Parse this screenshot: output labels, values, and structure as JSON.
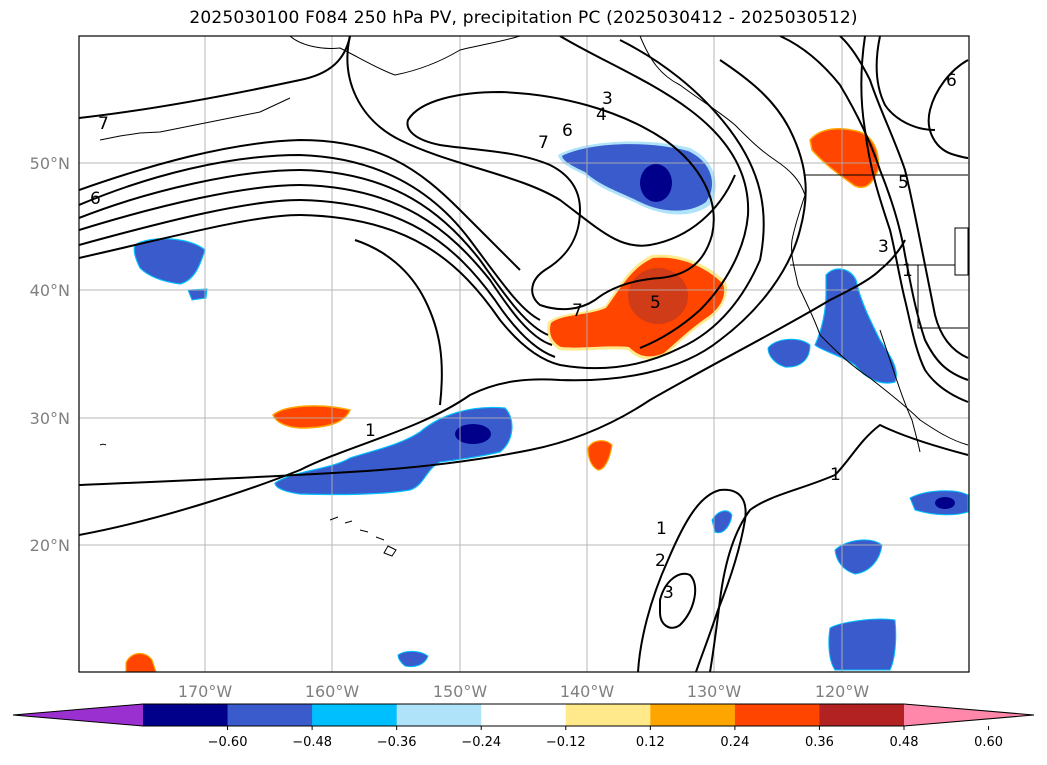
{
  "title": "2025030100 F084 250 hPa PV, precipitation PC (2025030412 - 2025030512)",
  "map": {
    "lat_ticks": [
      "20°N",
      "30°N",
      "40°N",
      "50°N"
    ],
    "lon_ticks": [
      "170°W",
      "160°W",
      "150°W",
      "140°W",
      "130°W",
      "120°W"
    ],
    "gridlines": true,
    "contour_labels": [
      "7",
      "6",
      "3",
      "4",
      "6",
      "7",
      "7",
      "5",
      "1",
      "1",
      "2",
      "3",
      "1",
      "3",
      "1",
      "5",
      "6"
    ]
  },
  "colorbar": {
    "ticks": [
      "−0.60",
      "−0.48",
      "−0.36",
      "−0.24",
      "−0.12",
      "0.12",
      "0.24",
      "0.36",
      "0.48",
      "0.60"
    ],
    "colors": [
      "#9b30d0",
      "#00008b",
      "#3a5bcc",
      "#00bfff",
      "#aee3fa",
      "#ffffff",
      "#ffe98a",
      "#ffa500",
      "#ff4500",
      "#b22222",
      "#ff88aa"
    ],
    "extend": "both"
  },
  "colors": {
    "contour": "#000000",
    "coast": "#000000",
    "grid": "#b0b0b0",
    "tick_label": "#808080"
  }
}
